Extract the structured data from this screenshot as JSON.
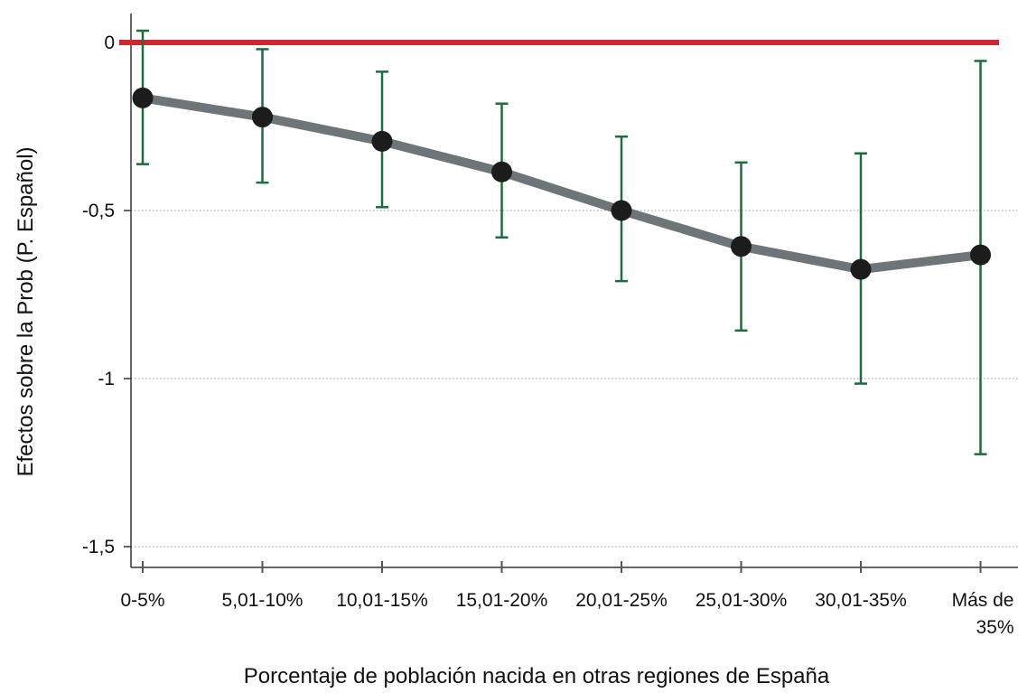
{
  "chart_data": {
    "type": "line",
    "title": "",
    "xlabel": "Porcentaje de población nacida en otras regiones de España",
    "ylabel": "Efectos sobre la Prob (P. Español)",
    "categories": [
      [
        "0-5%"
      ],
      [
        "5,01-10%"
      ],
      [
        "10,01-15%"
      ],
      [
        "15,01-20%"
      ],
      [
        "20,01-25%"
      ],
      [
        "25,01-30%"
      ],
      [
        "30,01-35%"
      ],
      [
        "Más de",
        "35%"
      ]
    ],
    "series": [
      {
        "values": [
          -0.165,
          -0.222,
          -0.294,
          -0.385,
          -0.5,
          -0.607,
          -0.675,
          -0.632
        ],
        "ci_low": [
          -0.362,
          -0.417,
          -0.49,
          -0.58,
          -0.71,
          -0.857,
          -1.015,
          -1.225
        ],
        "ci_high": [
          0.035,
          -0.02,
          -0.087,
          -0.182,
          -0.28,
          -0.357,
          -0.33,
          -0.055
        ]
      }
    ],
    "yticks": [
      0,
      -0.5,
      -1,
      -1.5
    ],
    "ytick_labels": [
      "0",
      "-0,5",
      "-1",
      "-1,5"
    ],
    "ylim": [
      -1.6,
      0.08
    ],
    "reference_line": 0,
    "grid": "dotted horizontal",
    "legend": "none",
    "colors": {
      "line": "#6d7579",
      "marker": "#1c1c1c",
      "error_bar": "#1b6e3c",
      "reference": "#d0262d",
      "grid": "#9a9a9a",
      "axis": "#333333"
    }
  }
}
